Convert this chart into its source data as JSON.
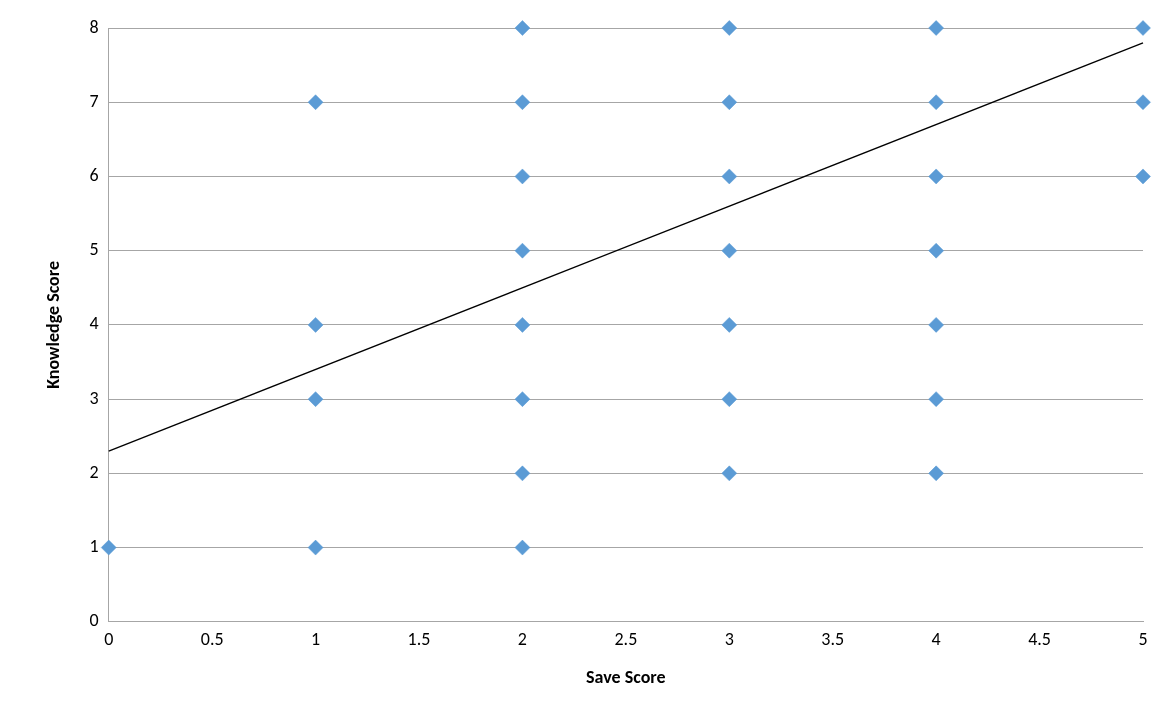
{
  "chart_data": {
    "type": "scatter",
    "xlabel": "Save Score",
    "ylabel": "Knowledge Score",
    "xlim": [
      0,
      5
    ],
    "xticks": [
      0,
      0.5,
      1,
      1.5,
      2,
      2.5,
      3,
      3.5,
      4,
      4.5,
      5
    ],
    "ylim": [
      0,
      8
    ],
    "yticks": [
      0,
      1,
      2,
      3,
      4,
      5,
      6,
      7,
      8
    ],
    "grid": "y",
    "legend": false,
    "marker": "diamond",
    "series": [
      {
        "type": "scatter",
        "color": "#5b9bd5",
        "x": [
          0,
          1,
          1,
          1,
          1,
          2,
          2,
          2,
          2,
          2,
          2,
          2,
          2,
          3,
          3,
          3,
          3,
          3,
          3,
          3,
          4,
          4,
          4,
          4,
          4,
          4,
          4,
          5,
          5,
          5
        ],
        "values": [
          1,
          7,
          4,
          3,
          1,
          8,
          7,
          6,
          5,
          4,
          3,
          2,
          1,
          8,
          7,
          6,
          5,
          4,
          3,
          2,
          8,
          7,
          6,
          5,
          4,
          3,
          2,
          8,
          7,
          6
        ]
      },
      {
        "type": "line",
        "color": "#000000",
        "marker": "none",
        "x": [
          0,
          5
        ],
        "values": [
          2.3,
          7.8
        ]
      }
    ]
  }
}
